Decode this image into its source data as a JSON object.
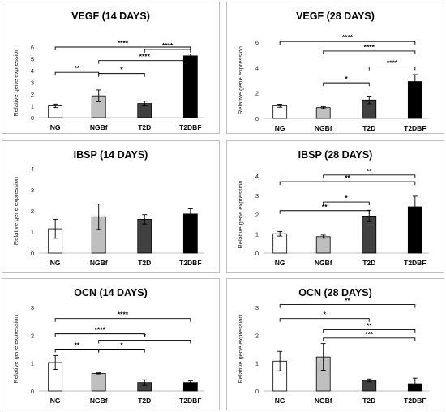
{
  "chart_data": [
    {
      "type": "bar",
      "title": "VEGF (14 DAYS)",
      "ylabel": "Relative gene expression",
      "categories": [
        "NG",
        "NGBf",
        "T2D",
        "T2DBF"
      ],
      "values": [
        1.0,
        1.85,
        1.2,
        5.25
      ],
      "errors": [
        0.15,
        0.5,
        0.2,
        0.15
      ],
      "ylim": [
        0,
        6
      ],
      "yticks": [
        "0",
        "1",
        "2",
        "3",
        "4",
        "5",
        "6"
      ],
      "significance": [
        {
          "from": 0,
          "to": 3,
          "y": 6.0,
          "label": "****"
        },
        {
          "from": 2,
          "to": 3,
          "y": 5.8,
          "label": "****"
        },
        {
          "from": 1,
          "to": 3,
          "y": 4.85,
          "label": "****"
        },
        {
          "from": 0,
          "to": 1,
          "y": 3.85,
          "label": "**"
        },
        {
          "from": 1,
          "to": 2,
          "y": 3.75,
          "label": "*"
        }
      ]
    },
    {
      "type": "bar",
      "title": "VEGF (28 DAYS)",
      "ylabel": "Relative gene expression",
      "categories": [
        "NG",
        "NGBf",
        "T2D",
        "T2DBF"
      ],
      "values": [
        1.0,
        0.85,
        1.45,
        2.9
      ],
      "errors": [
        0.12,
        0.08,
        0.3,
        0.55
      ],
      "ylim": [
        0,
        6
      ],
      "yticks": [
        "0",
        "2",
        "4",
        "6"
      ],
      "significance": [
        {
          "from": 0,
          "to": 3,
          "y": 6.05,
          "label": "****"
        },
        {
          "from": 1,
          "to": 3,
          "y": 5.3,
          "label": "****"
        },
        {
          "from": 2,
          "to": 3,
          "y": 4.05,
          "label": "****"
        },
        {
          "from": 1,
          "to": 2,
          "y": 2.8,
          "label": "*"
        }
      ]
    },
    {
      "type": "bar",
      "title": "IBSP (14 DAYS)",
      "ylabel": "Relative gene expression",
      "categories": [
        "NG",
        "NGBf",
        "T2D",
        "T2DBF"
      ],
      "values": [
        1.15,
        1.72,
        1.6,
        1.85
      ],
      "errors": [
        0.45,
        0.6,
        0.22,
        0.25
      ],
      "ylim": [
        0,
        4
      ],
      "yticks": [
        "0",
        "1",
        "2",
        "3",
        "4"
      ],
      "significance": []
    },
    {
      "type": "bar",
      "title": "IBSP (28 DAYS)",
      "ylabel": "Relative gene expression",
      "categories": [
        "NG",
        "NGBf",
        "T2D",
        "T2DBF"
      ],
      "values": [
        1.0,
        0.85,
        1.92,
        2.4
      ],
      "errors": [
        0.12,
        0.08,
        0.3,
        0.55
      ],
      "ylim": [
        0,
        4
      ],
      "yticks": [
        "0",
        "1",
        "2",
        "3",
        "4"
      ],
      "significance": [
        {
          "from": 1,
          "to": 3,
          "y": 4.05,
          "label": "**"
        },
        {
          "from": 0,
          "to": 3,
          "y": 3.7,
          "label": "**"
        },
        {
          "from": 1,
          "to": 2,
          "y": 2.65,
          "label": "*"
        },
        {
          "from": 0,
          "to": 2,
          "y": 2.2,
          "label": "**"
        }
      ]
    },
    {
      "type": "bar",
      "title": "OCN (14 DAYS)",
      "ylabel": "Relative gene expression",
      "categories": [
        "NG",
        "NGBf",
        "T2D",
        "T2DBF"
      ],
      "values": [
        1.02,
        0.63,
        0.3,
        0.3
      ],
      "errors": [
        0.25,
        0.02,
        0.1,
        0.06
      ],
      "ylim": [
        0,
        3
      ],
      "yticks": [
        "0",
        "1",
        "2",
        "3"
      ],
      "significance": [
        {
          "from": 0,
          "to": 3,
          "y": 2.6,
          "label": "****"
        },
        {
          "from": 0,
          "to": 2,
          "y": 2.05,
          "label": "****"
        },
        {
          "from": 1,
          "to": 3,
          "y": 1.82,
          "label": "*"
        },
        {
          "from": 0,
          "to": 1,
          "y": 1.5,
          "label": "**"
        },
        {
          "from": 1,
          "to": 2,
          "y": 1.5,
          "label": "*"
        }
      ]
    },
    {
      "type": "bar",
      "title": "OCN (28 DAYS)",
      "ylabel": "Relative gene expression",
      "categories": [
        "NG",
        "NGBf",
        "T2D",
        "T2DBF"
      ],
      "values": [
        1.07,
        1.22,
        0.38,
        0.26
      ],
      "errors": [
        0.35,
        0.48,
        0.05,
        0.2
      ],
      "ylim": [
        0,
        3
      ],
      "yticks": [
        "0",
        "1",
        "2",
        "3"
      ],
      "significance": [
        {
          "from": 0,
          "to": 3,
          "y": 3.1,
          "label": "**"
        },
        {
          "from": 0,
          "to": 2,
          "y": 2.6,
          "label": "*"
        },
        {
          "from": 1,
          "to": 3,
          "y": 2.2,
          "label": "**"
        },
        {
          "from": 1,
          "to": 3,
          "y": 1.9,
          "label": "***"
        }
      ]
    }
  ],
  "colors": {
    "bars": [
      "#ffffff",
      "#bfbfbf",
      "#404040",
      "#000000"
    ],
    "bar_stroke": "#000000",
    "panel_border": "#bfbfbf",
    "axis": "#bfbfbf"
  }
}
